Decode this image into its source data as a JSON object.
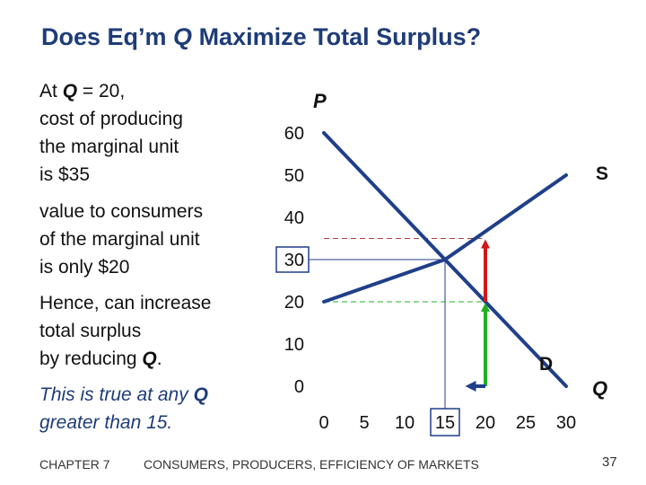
{
  "slide": {
    "title_pre": "Does Eq’m ",
    "title_q": "Q",
    "title_post": "  Maximize Total Surplus?",
    "para1": {
      "pre": "At ",
      "bold": "Q",
      "post": " = 20,\ncost of producing\nthe marginal unit\nis $35"
    },
    "para2": "value to consumers\nof the marginal unit\nis only $20",
    "para3": {
      "pre": "Hence, can increase\ntotal surplus\nby reducing ",
      "bold": "Q",
      "post": "."
    },
    "para4": {
      "pre": "This is true at any ",
      "bold": "Q",
      "post": "\ngreater than 15."
    },
    "footer_left": "CHAPTER 7",
    "footer_mid": "CONSUMERS, PRODUCERS, EFFICIENCY OF MARKETS",
    "page_number": "37"
  },
  "chart_data": {
    "type": "line",
    "x_axis_label": "Q",
    "y_axis_label": "P",
    "x_ticks": [
      "0",
      "5",
      "10",
      "15",
      "20",
      "25",
      "30"
    ],
    "y_ticks": [
      "0",
      "10",
      "20",
      "30",
      "40",
      "50",
      "60"
    ],
    "xlim": [
      0,
      30
    ],
    "ylim": [
      0,
      60
    ],
    "highlighted_x_tick": "15",
    "highlighted_y_tick": "30",
    "series": [
      {
        "name": "D",
        "x": [
          0,
          15,
          30
        ],
        "y": [
          60,
          30,
          0
        ],
        "color": "#1f3f8a"
      },
      {
        "name": "S",
        "x": [
          0,
          15,
          30
        ],
        "y": [
          20,
          30,
          50
        ],
        "color": "#1f3f8a"
      }
    ],
    "equilibrium": {
      "q": 15,
      "p": 30
    },
    "marginal_unit": {
      "q": 20,
      "cost": 35,
      "value": 20
    },
    "arrows": [
      {
        "color": "#d01818",
        "x": 20,
        "from": 20,
        "to": 35
      },
      {
        "color": "#22b022",
        "x": 20,
        "from": 0,
        "to": 20
      },
      {
        "color": "#1f3f8a",
        "y": 0,
        "from": 20,
        "to": 17.5
      }
    ],
    "dashed_lines": [
      {
        "color": "#b04040",
        "y": 35
      },
      {
        "color": "#22b022",
        "y": 20
      }
    ]
  }
}
